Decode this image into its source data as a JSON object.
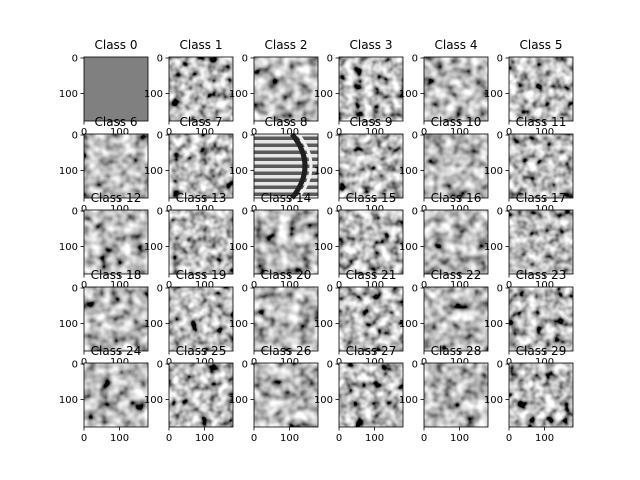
{
  "chart_data": {
    "type": "image_grid",
    "rows": 5,
    "cols": 6,
    "panel_titles": [
      "Class 0",
      "Class 1",
      "Class 2",
      "Class 3",
      "Class 4",
      "Class 5",
      "Class 6",
      "Class 7",
      "Class 8",
      "Class 9",
      "Class 10",
      "Class 11",
      "Class 12",
      "Class 13",
      "Class 14",
      "Class 15",
      "Class 16",
      "Class 17",
      "Class 18",
      "Class 19",
      "Class 20",
      "Class 21",
      "Class 22",
      "Class 23",
      "Class 24",
      "Class 25",
      "Class 26",
      "Class 27",
      "Class 28",
      "Class 29"
    ],
    "y_tick_labels": [
      "0",
      "100"
    ],
    "x_tick_labels": [
      "0",
      "100"
    ],
    "colormap": "gray",
    "uniform_panels": [
      0
    ],
    "striped_panels": [
      8
    ],
    "uniform_color": "#808080"
  }
}
